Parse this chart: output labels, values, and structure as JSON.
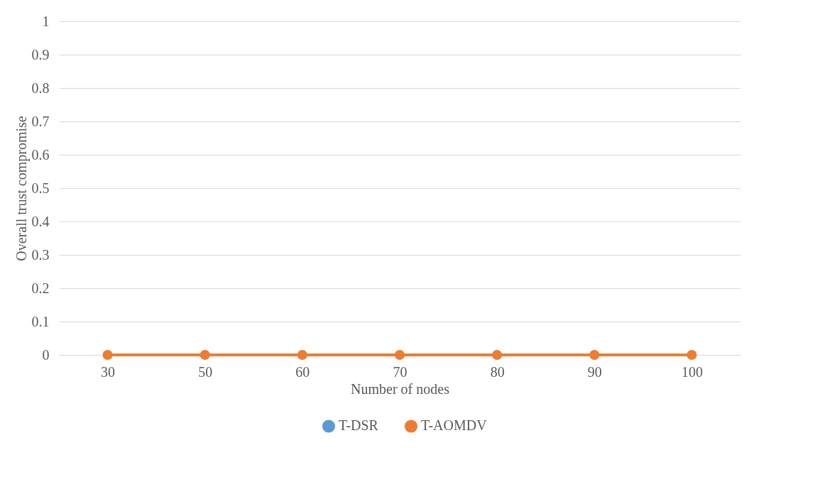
{
  "chart_data": {
    "type": "line",
    "xlabel": "Number of nodes",
    "ylabel": "Overall trust compromise",
    "categories": [
      "30",
      "50",
      "60",
      "70",
      "80",
      "90",
      "100"
    ],
    "series": [
      {
        "name": "T-DSR",
        "color": "#5b9bd5",
        "values": [
          null,
          null,
          null,
          null,
          null,
          null,
          null
        ]
      },
      {
        "name": "T-AOMDV",
        "color": "#ed7d31",
        "values": [
          0,
          0,
          0,
          0,
          0,
          0,
          0
        ]
      }
    ],
    "ylim": [
      0,
      1
    ],
    "yticks": [
      0,
      0.1,
      0.2,
      0.3,
      0.4,
      0.5,
      0.6,
      0.7,
      0.8,
      0.9,
      1
    ],
    "grid": "y",
    "legend": "bottom",
    "marker": "circle",
    "line_style": "solid"
  }
}
